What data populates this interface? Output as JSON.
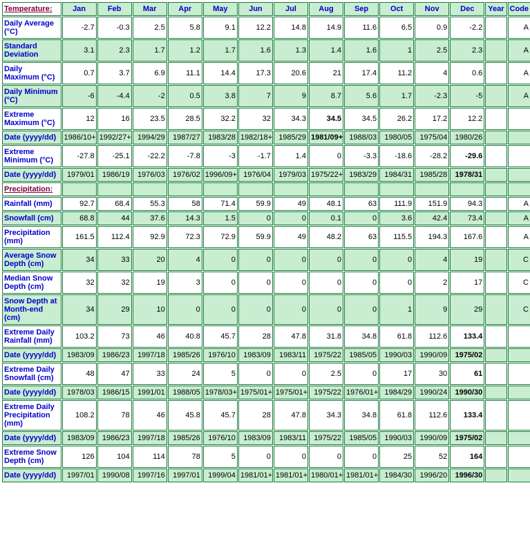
{
  "headers": {
    "section_temp": "Temperature:",
    "section_precip": "Precipitation:",
    "months": [
      "Jan",
      "Feb",
      "Mar",
      "Apr",
      "May",
      "Jun",
      "Jul",
      "Aug",
      "Sep",
      "Oct",
      "Nov",
      "Dec"
    ],
    "year": "Year",
    "code": "Code"
  },
  "rows": [
    {
      "label": "Daily Average (°C)",
      "bg": "white",
      "vals": [
        "-2.7",
        "-0.3",
        "2.5",
        "5.8",
        "9.1",
        "12.2",
        "14.8",
        "14.9",
        "11.6",
        "6.5",
        "0.9",
        "-2.2",
        "",
        "A"
      ],
      "bold": []
    },
    {
      "label": "Standard Deviation",
      "bg": "green",
      "vals": [
        "3.1",
        "2.3",
        "1.7",
        "1.2",
        "1.7",
        "1.6",
        "1.3",
        "1.4",
        "1.6",
        "1",
        "2.5",
        "2.3",
        "",
        "A"
      ],
      "bold": []
    },
    {
      "label": "Daily Maximum (°C)",
      "bg": "white",
      "vals": [
        "0.7",
        "3.7",
        "6.9",
        "11.1",
        "14.4",
        "17.3",
        "20.6",
        "21",
        "17.4",
        "11.2",
        "4",
        "0.6",
        "",
        "A"
      ],
      "bold": []
    },
    {
      "label": "Daily Minimum (°C)",
      "bg": "green",
      "vals": [
        "-6",
        "-4.4",
        "-2",
        "0.5",
        "3.8",
        "7",
        "9",
        "8.7",
        "5.6",
        "1.7",
        "-2.3",
        "-5",
        "",
        "A"
      ],
      "bold": []
    },
    {
      "label": "Extreme Maximum (°C)",
      "bg": "white",
      "vals": [
        "12",
        "16",
        "23.5",
        "28.5",
        "32.2",
        "32",
        "34.3",
        "34.5",
        "34.5",
        "26.2",
        "17.2",
        "12.2",
        "",
        ""
      ],
      "bold": [
        7
      ]
    },
    {
      "label": "Date (yyyy/dd)",
      "bg": "green",
      "vals": [
        "1986/10+",
        "1992/27+",
        "1994/29",
        "1987/27",
        "1983/28",
        "1982/18+",
        "1985/29",
        "1981/09+",
        "1988/03",
        "1980/05",
        "1975/04",
        "1980/26",
        "",
        ""
      ],
      "bold": [
        7
      ]
    },
    {
      "label": "Extreme Minimum (°C)",
      "bg": "white",
      "vals": [
        "-27.8",
        "-25.1",
        "-22.2",
        "-7.8",
        "-3",
        "-1.7",
        "1.4",
        "0",
        "-3.3",
        "-18.6",
        "-28.2",
        "-29.6",
        "",
        ""
      ],
      "bold": [
        11
      ]
    },
    {
      "label": "Date (yyyy/dd)",
      "bg": "green",
      "vals": [
        "1979/01",
        "1986/19",
        "1976/03",
        "1976/02",
        "1996/09+",
        "1976/04",
        "1979/03",
        "1975/22+",
        "1983/29",
        "1984/31",
        "1985/28",
        "1978/31",
        "",
        ""
      ],
      "bold": [
        11
      ]
    },
    {
      "section": "Precipitation:"
    },
    {
      "label": "Rainfall (mm)",
      "bg": "white",
      "vals": [
        "92.7",
        "68.4",
        "55.3",
        "58",
        "71.4",
        "59.9",
        "49",
        "48.1",
        "63",
        "111.9",
        "151.9",
        "94.3",
        "",
        "A"
      ],
      "bold": []
    },
    {
      "label": "Snowfall (cm)",
      "bg": "green",
      "vals": [
        "68.8",
        "44",
        "37.6",
        "14.3",
        "1.5",
        "0",
        "0",
        "0.1",
        "0",
        "3.6",
        "42.4",
        "73.4",
        "",
        "A"
      ],
      "bold": []
    },
    {
      "label": "Precipitation (mm)",
      "bg": "white",
      "vals": [
        "161.5",
        "112.4",
        "92.9",
        "72.3",
        "72.9",
        "59.9",
        "49",
        "48.2",
        "63",
        "115.5",
        "194.3",
        "167.6",
        "",
        "A"
      ],
      "bold": []
    },
    {
      "label": "Average Snow Depth (cm)",
      "bg": "green",
      "vals": [
        "34",
        "33",
        "20",
        "4",
        "0",
        "0",
        "0",
        "0",
        "0",
        "0",
        "4",
        "19",
        "",
        "C"
      ],
      "bold": []
    },
    {
      "label": "Median Snow Depth (cm)",
      "bg": "white",
      "vals": [
        "32",
        "32",
        "19",
        "3",
        "0",
        "0",
        "0",
        "0",
        "0",
        "0",
        "2",
        "17",
        "",
        "C"
      ],
      "bold": []
    },
    {
      "label": "Snow Depth at Month-end (cm)",
      "bg": "green",
      "vals": [
        "34",
        "29",
        "10",
        "0",
        "0",
        "0",
        "0",
        "0",
        "0",
        "1",
        "9",
        "29",
        "",
        "C"
      ],
      "bold": []
    },
    {
      "label": "Extreme Daily Rainfall (mm)",
      "bg": "white",
      "vals": [
        "103.2",
        "73",
        "46",
        "40.8",
        "45.7",
        "28",
        "47.8",
        "31.8",
        "34.8",
        "61.8",
        "112.6",
        "133.4",
        "",
        ""
      ],
      "bold": [
        11
      ]
    },
    {
      "label": "Date (yyyy/dd)",
      "bg": "green",
      "vals": [
        "1983/09",
        "1986/23",
        "1997/18",
        "1985/26",
        "1976/10",
        "1983/09",
        "1983/11",
        "1975/22",
        "1985/05",
        "1990/03",
        "1990/09",
        "1975/02",
        "",
        ""
      ],
      "bold": [
        11
      ]
    },
    {
      "label": "Extreme Daily Snowfall (cm)",
      "bg": "white",
      "vals": [
        "48",
        "47",
        "33",
        "24",
        "5",
        "0",
        "0",
        "2.5",
        "0",
        "17",
        "30",
        "61",
        "",
        ""
      ],
      "bold": [
        11
      ]
    },
    {
      "label": "Date (yyyy/dd)",
      "bg": "green",
      "vals": [
        "1978/03",
        "1986/15",
        "1991/01",
        "1988/05",
        "1978/03+",
        "1975/01+",
        "1975/01+",
        "1975/22",
        "1976/01+",
        "1984/29",
        "1990/24",
        "1990/30",
        "",
        ""
      ],
      "bold": [
        11
      ]
    },
    {
      "label": "Extreme Daily Precipitation (mm)",
      "bg": "white",
      "vals": [
        "108.2",
        "78",
        "46",
        "45.8",
        "45.7",
        "28",
        "47.8",
        "34.3",
        "34.8",
        "61.8",
        "112.6",
        "133.4",
        "",
        ""
      ],
      "bold": [
        11
      ]
    },
    {
      "label": "Date (yyyy/dd)",
      "bg": "green",
      "vals": [
        "1983/09",
        "1986/23",
        "1997/18",
        "1985/26",
        "1976/10",
        "1983/09",
        "1983/11",
        "1975/22",
        "1985/05",
        "1990/03",
        "1990/09",
        "1975/02",
        "",
        ""
      ],
      "bold": [
        11
      ]
    },
    {
      "label": "Extreme Snow Depth (cm)",
      "bg": "white",
      "vals": [
        "126",
        "104",
        "114",
        "78",
        "5",
        "0",
        "0",
        "0",
        "0",
        "25",
        "52",
        "164",
        "",
        ""
      ],
      "bold": [
        11
      ]
    },
    {
      "label": "Date (yyyy/dd)",
      "bg": "green",
      "vals": [
        "1997/01",
        "1990/08",
        "1997/16",
        "1997/01",
        "1999/04",
        "1981/01+",
        "1981/01+",
        "1980/01+",
        "1981/01+",
        "1984/30",
        "1996/20",
        "1996/30",
        "",
        ""
      ],
      "bold": [
        11
      ]
    }
  ]
}
